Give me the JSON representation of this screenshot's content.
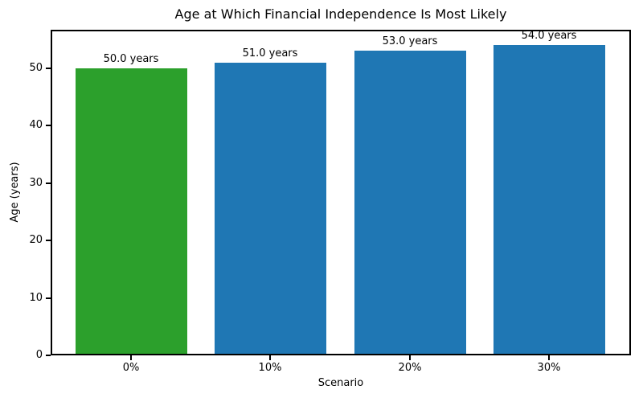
{
  "figure": {
    "background_color": "#ffffff",
    "text_color": "#000000",
    "spine_color": "#000000"
  },
  "chart_data": {
    "type": "bar",
    "title": "Age at Which Financial Independence Is Most Likely",
    "xlabel": "Scenario",
    "ylabel": "Age (years)",
    "categories": [
      "0%",
      "10%",
      "20%",
      "30%"
    ],
    "values": [
      50.0,
      51.0,
      53.0,
      54.0
    ],
    "bar_labels": [
      "50.0 years",
      "51.0 years",
      "53.0 years",
      "54.0 years"
    ],
    "bar_colors": [
      "#2ca02c",
      "#1f77b4",
      "#1f77b4",
      "#1f77b4"
    ],
    "highlight_color": "#2ca02c",
    "default_bar_color": "#1f77b4",
    "yticks": [
      0,
      10,
      20,
      30,
      40,
      50
    ],
    "ylim": [
      0,
      56.7
    ],
    "grid": false,
    "legend": "none"
  }
}
